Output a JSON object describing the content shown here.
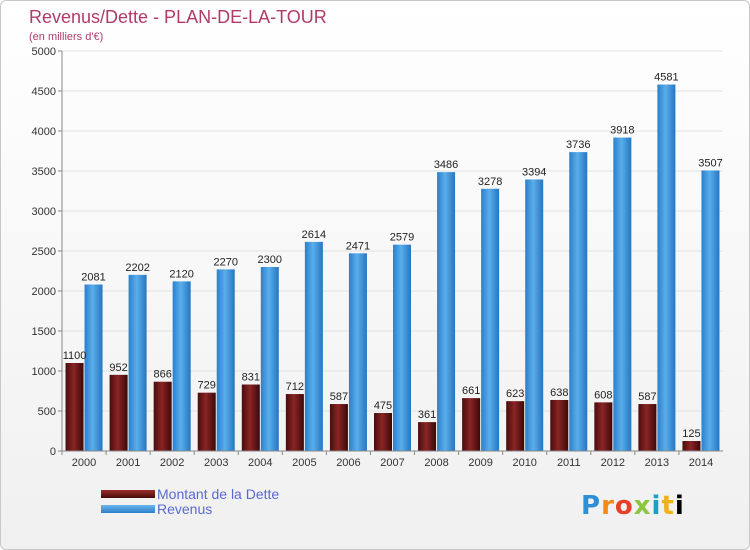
{
  "chart_data": {
    "type": "bar",
    "title": "Revenus/Dette - PLAN-DE-LA-TOUR",
    "subtitle": "(en milliers d'€)",
    "categories": [
      "2000",
      "2001",
      "2002",
      "2003",
      "2004",
      "2005",
      "2006",
      "2007",
      "2008",
      "2009",
      "2010",
      "2011",
      "2012",
      "2013",
      "2014"
    ],
    "series": [
      {
        "name": "Montant de la Dette",
        "color": "#7a1a1a",
        "values": [
          1100,
          952,
          866,
          729,
          831,
          712,
          587,
          475,
          361,
          661,
          623,
          638,
          608,
          587,
          125
        ]
      },
      {
        "name": "Revenus",
        "color": "#3d96de",
        "values": [
          2081,
          2202,
          2120,
          2270,
          2300,
          2614,
          2471,
          2579,
          3486,
          3278,
          3394,
          3736,
          3918,
          4581,
          3507
        ]
      }
    ],
    "ylim": [
      0,
      5000
    ],
    "yticks": [
      0,
      500,
      1000,
      1500,
      2000,
      2500,
      3000,
      3500,
      4000,
      4500,
      5000
    ],
    "grid": true,
    "legend_position": "bottom-left"
  },
  "legend": {
    "items": [
      {
        "label": "Montant de la Dette",
        "color": "#7a1a1a"
      },
      {
        "label": "Revenus",
        "color": "#3d96de"
      }
    ]
  },
  "logo": {
    "letters": [
      "P",
      "r",
      "o",
      "x",
      "i",
      "t",
      "i"
    ]
  }
}
